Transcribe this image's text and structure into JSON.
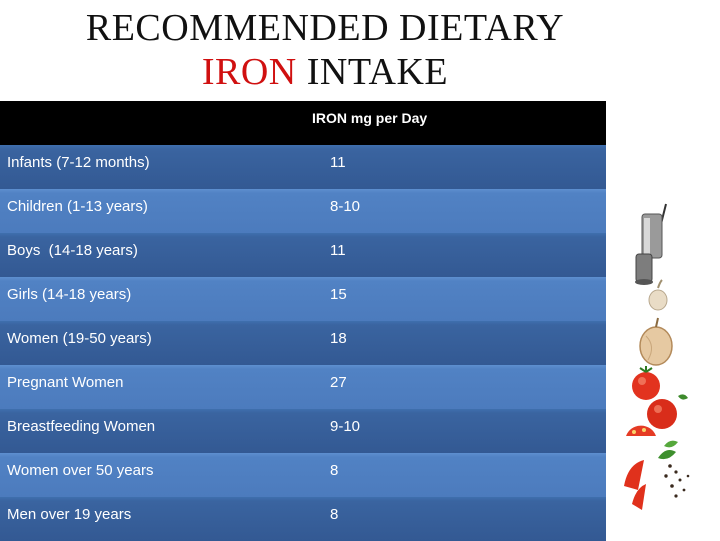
{
  "title": {
    "line1": "RECOMMENDED DIETARY",
    "line2_red": "IRON",
    "line2_rest": " INTAKE"
  },
  "table": {
    "columns": [
      "",
      "IRON mg per Day"
    ],
    "rows": [
      {
        "group": "Infants (7-12 months)",
        "iron": "11"
      },
      {
        "group": "Children (1-13 years)",
        "iron": "8-10"
      },
      {
        "group": "Boys  (14-18 years)",
        "iron": "11"
      },
      {
        "group": "Girls (14-18 years)",
        "iron": "15"
      },
      {
        "group": "Women (19-50 years)",
        "iron": "18"
      },
      {
        "group": "Pregnant Women",
        "iron": "27"
      },
      {
        "group": "Breastfeeding Women",
        "iron": "9-10"
      },
      {
        "group": "Women over 50 years",
        "iron": "8"
      },
      {
        "group": "Men over 19 years",
        "iron": "8"
      }
    ]
  },
  "colors": {
    "header": "#000000",
    "row_dark": "#3a64a0",
    "row_light": "#5182c4",
    "title_accent": "#d01010"
  },
  "decoration": {
    "image": "vegetables-and-spices-illustration"
  }
}
